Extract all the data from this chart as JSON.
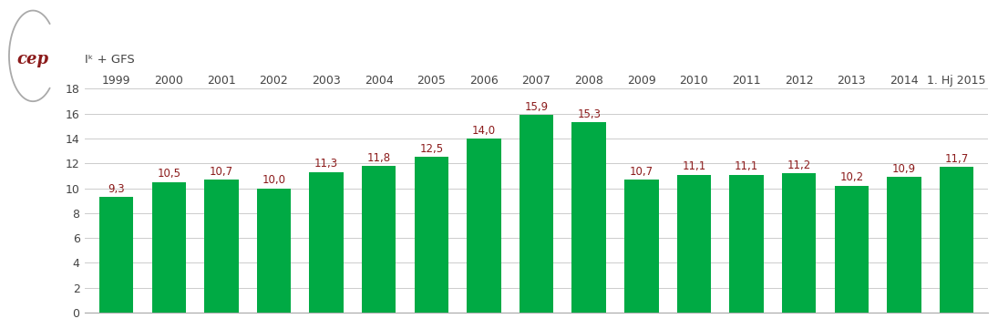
{
  "categories": [
    "1999",
    "2000",
    "2001",
    "2002",
    "2003",
    "2004",
    "2005",
    "2006",
    "2007",
    "2008",
    "2009",
    "2010",
    "2011",
    "2012",
    "2013",
    "2014",
    "1. Hj 2015"
  ],
  "values": [
    9.3,
    10.5,
    10.7,
    10.0,
    11.3,
    11.8,
    12.5,
    14.0,
    15.9,
    15.3,
    10.7,
    11.1,
    11.1,
    11.2,
    10.2,
    10.9,
    11.7
  ],
  "bar_color": "#00AA44",
  "label_color": "#8B1A1A",
  "axis_label": "Iᵏ + GFS",
  "ylim": [
    0,
    18
  ],
  "yticks": [
    0,
    2,
    4,
    6,
    8,
    10,
    12,
    14,
    16,
    18
  ],
  "grid_color": "#CCCCCC",
  "bg_color": "#FFFFFF",
  "bar_width": 0.65,
  "label_fontsize": 8.5,
  "tick_fontsize": 9,
  "cep_color": "#8B1A1A",
  "bracket_color": "#AAAAAA",
  "spine_color": "#AAAAAA",
  "tick_color": "#444444"
}
